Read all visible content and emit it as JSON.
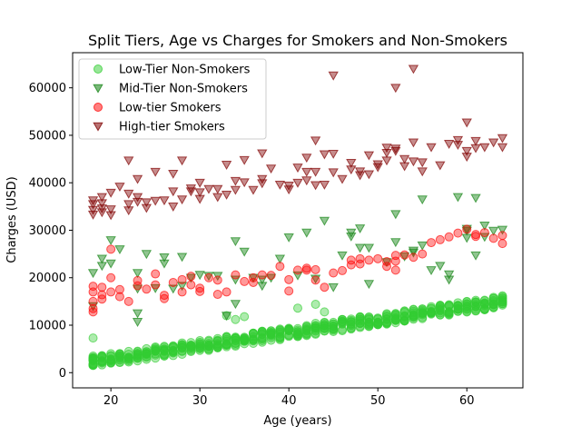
{
  "chart_data": {
    "type": "scatter",
    "title": "Split Tiers, Age vs Charges for Smokers and Non-Smokers",
    "xlabel": "Age (years)",
    "ylabel": "Charges (USD)",
    "xlim": [
      15.7,
      66.3
    ],
    "ylim": [
      -3200,
      67400
    ],
    "xticks": [
      20,
      30,
      40,
      50,
      60
    ],
    "yticks": [
      0,
      10000,
      20000,
      30000,
      40000,
      50000,
      60000
    ],
    "grid": false,
    "legend_position": "upper-left",
    "series": [
      {
        "name": "Low-Tier Non-Smokers",
        "marker": "circle",
        "color": "#32cd32",
        "alpha": 0.4,
        "trend": {
          "x0": 18,
          "x1": 64,
          "y0": 1800,
          "y1": 14500,
          "spread_low": 700,
          "spread_high": 1700
        },
        "points": [
          [
            18,
            7300
          ],
          [
            34,
            11200
          ],
          [
            35,
            11800
          ],
          [
            41,
            13600
          ],
          [
            43,
            14400
          ],
          [
            44,
            12800
          ],
          [
            33,
            12000
          ],
          [
            63,
            15200
          ],
          [
            64,
            16200
          ]
        ]
      },
      {
        "name": "Mid-Tier Non-Smokers",
        "marker": "triangle-down",
        "color": "#228b22",
        "alpha": 0.5,
        "points": [
          [
            18,
            21000
          ],
          [
            18,
            14000
          ],
          [
            19,
            22500
          ],
          [
            19,
            24000
          ],
          [
            20,
            27900
          ],
          [
            20,
            23000
          ],
          [
            21,
            26000
          ],
          [
            23,
            21000
          ],
          [
            23,
            17700
          ],
          [
            23,
            12500
          ],
          [
            23,
            10700
          ],
          [
            24,
            25000
          ],
          [
            25,
            17800
          ],
          [
            26,
            24300
          ],
          [
            26,
            23000
          ],
          [
            27,
            17700
          ],
          [
            28,
            24400
          ],
          [
            28,
            18300
          ],
          [
            29,
            20000
          ],
          [
            30,
            20600
          ],
          [
            31,
            20400
          ],
          [
            32,
            20400
          ],
          [
            33,
            12000
          ],
          [
            34,
            27700
          ],
          [
            34,
            14500
          ],
          [
            34,
            19600
          ],
          [
            35,
            25500
          ],
          [
            36,
            20000
          ],
          [
            37,
            18300
          ],
          [
            37,
            19600
          ],
          [
            38,
            20000
          ],
          [
            39,
            24000
          ],
          [
            40,
            28500
          ],
          [
            41,
            20500
          ],
          [
            42,
            29500
          ],
          [
            43,
            19800
          ],
          [
            44,
            32000
          ],
          [
            45,
            18000
          ],
          [
            46,
            24700
          ],
          [
            47,
            29500
          ],
          [
            47,
            28700
          ],
          [
            48,
            26300
          ],
          [
            48,
            30400
          ],
          [
            49,
            26300
          ],
          [
            49,
            18700
          ],
          [
            51,
            23300
          ],
          [
            52,
            27500
          ],
          [
            52,
            33400
          ],
          [
            53,
            24500
          ],
          [
            54,
            25700
          ],
          [
            54,
            25300
          ],
          [
            55,
            36500
          ],
          [
            55,
            26800
          ],
          [
            56,
            21600
          ],
          [
            57,
            22500
          ],
          [
            58,
            20700
          ],
          [
            58,
            19600
          ],
          [
            59,
            37000
          ],
          [
            60,
            29900
          ],
          [
            60,
            28400
          ],
          [
            60,
            30300
          ],
          [
            61,
            36800
          ],
          [
            61,
            24700
          ],
          [
            62,
            31000
          ],
          [
            62,
            28600
          ],
          [
            63,
            29900
          ],
          [
            64,
            30100
          ]
        ]
      },
      {
        "name": "Low-tier Smokers",
        "marker": "circle",
        "color": "#ff0000",
        "alpha": 0.4,
        "points": [
          [
            18,
            18200
          ],
          [
            18,
            17000
          ],
          [
            18,
            15000
          ],
          [
            18,
            13500
          ],
          [
            18,
            12800
          ],
          [
            19,
            16400
          ],
          [
            19,
            15500
          ],
          [
            19,
            18000
          ],
          [
            20,
            20000
          ],
          [
            20,
            17000
          ],
          [
            20,
            26000
          ],
          [
            21,
            16000
          ],
          [
            21,
            17500
          ],
          [
            22,
            15000
          ],
          [
            23,
            18300
          ],
          [
            23,
            19400
          ],
          [
            24,
            17600
          ],
          [
            25,
            20800
          ],
          [
            25,
            18500
          ],
          [
            26,
            16300
          ],
          [
            26,
            15600
          ],
          [
            27,
            19000
          ],
          [
            28,
            17000
          ],
          [
            28,
            19600
          ],
          [
            29,
            18500
          ],
          [
            29,
            20300
          ],
          [
            30,
            17100
          ],
          [
            30,
            17800
          ],
          [
            31,
            20000
          ],
          [
            32,
            19500
          ],
          [
            32,
            16500
          ],
          [
            33,
            17000
          ],
          [
            34,
            20600
          ],
          [
            35,
            19200
          ],
          [
            36,
            20000
          ],
          [
            36,
            19000
          ],
          [
            37,
            20600
          ],
          [
            38,
            20500
          ],
          [
            39,
            22400
          ],
          [
            40,
            19600
          ],
          [
            40,
            17200
          ],
          [
            41,
            21600
          ],
          [
            42,
            22000
          ],
          [
            42,
            21600
          ],
          [
            43,
            21700
          ],
          [
            43,
            19500
          ],
          [
            44,
            18000
          ],
          [
            45,
            21000
          ],
          [
            46,
            21500
          ],
          [
            47,
            23700
          ],
          [
            47,
            22700
          ],
          [
            48,
            24000
          ],
          [
            48,
            22900
          ],
          [
            49,
            23700
          ],
          [
            50,
            24000
          ],
          [
            51,
            23400
          ],
          [
            51,
            22400
          ],
          [
            52,
            24700
          ],
          [
            52,
            23500
          ],
          [
            52,
            21600
          ],
          [
            53,
            24800
          ],
          [
            54,
            24300
          ],
          [
            55,
            25000
          ],
          [
            56,
            27400
          ],
          [
            57,
            28000
          ],
          [
            58,
            28600
          ],
          [
            59,
            29400
          ],
          [
            60,
            30200
          ],
          [
            61,
            28700
          ],
          [
            61,
            29100
          ],
          [
            62,
            29500
          ],
          [
            63,
            28300
          ],
          [
            64,
            28900
          ],
          [
            64,
            27200
          ]
        ]
      },
      {
        "name": "High-tier Smokers",
        "marker": "triangle-down",
        "color": "#800000",
        "alpha": 0.45,
        "points": [
          [
            18,
            36300
          ],
          [
            18,
            35500
          ],
          [
            18,
            34300
          ],
          [
            18,
            33300
          ],
          [
            19,
            37000
          ],
          [
            19,
            34600
          ],
          [
            19,
            33800
          ],
          [
            19,
            35700
          ],
          [
            20,
            37900
          ],
          [
            20,
            34400
          ],
          [
            20,
            33200
          ],
          [
            21,
            39200
          ],
          [
            22,
            44700
          ],
          [
            22,
            37700
          ],
          [
            22,
            35500
          ],
          [
            22,
            34200
          ],
          [
            23,
            40800
          ],
          [
            23,
            37000
          ],
          [
            23,
            36000
          ],
          [
            24,
            35900
          ],
          [
            24,
            34700
          ],
          [
            25,
            42300
          ],
          [
            25,
            36200
          ],
          [
            26,
            36300
          ],
          [
            27,
            41900
          ],
          [
            27,
            38200
          ],
          [
            27,
            35000
          ],
          [
            28,
            44700
          ],
          [
            28,
            36500
          ],
          [
            29,
            38200
          ],
          [
            29,
            38800
          ],
          [
            30,
            40000
          ],
          [
            30,
            38000
          ],
          [
            30,
            36600
          ],
          [
            31,
            38700
          ],
          [
            32,
            37000
          ],
          [
            32,
            38700
          ],
          [
            33,
            43800
          ],
          [
            33,
            37500
          ],
          [
            34,
            40400
          ],
          [
            34,
            38500
          ],
          [
            35,
            44800
          ],
          [
            35,
            40100
          ],
          [
            36,
            38500
          ],
          [
            37,
            40800
          ],
          [
            37,
            39900
          ],
          [
            37,
            46200
          ],
          [
            38,
            43000
          ],
          [
            39,
            39600
          ],
          [
            40,
            39400
          ],
          [
            40,
            38600
          ],
          [
            41,
            40000
          ],
          [
            41,
            43200
          ],
          [
            42,
            45300
          ],
          [
            42,
            42300
          ],
          [
            42,
            40500
          ],
          [
            43,
            48900
          ],
          [
            43,
            42300
          ],
          [
            43,
            39500
          ],
          [
            44,
            46000
          ],
          [
            44,
            39600
          ],
          [
            45,
            62600
          ],
          [
            45,
            46100
          ],
          [
            45,
            42200
          ],
          [
            46,
            40800
          ],
          [
            47,
            42800
          ],
          [
            47,
            44200
          ],
          [
            48,
            42400
          ],
          [
            48,
            41600
          ],
          [
            49,
            45800
          ],
          [
            49,
            41800
          ],
          [
            50,
            43900
          ],
          [
            50,
            43300
          ],
          [
            51,
            47400
          ],
          [
            51,
            46300
          ],
          [
            51,
            44700
          ],
          [
            52,
            46700
          ],
          [
            52,
            60000
          ],
          [
            52,
            47200
          ],
          [
            53,
            45000
          ],
          [
            53,
            43500
          ],
          [
            54,
            64000
          ],
          [
            54,
            44500
          ],
          [
            54,
            48500
          ],
          [
            55,
            44300
          ],
          [
            55,
            42400
          ],
          [
            56,
            47500
          ],
          [
            57,
            43700
          ],
          [
            58,
            48200
          ],
          [
            59,
            49000
          ],
          [
            59,
            48000
          ],
          [
            60,
            52700
          ],
          [
            60,
            46700
          ],
          [
            60,
            45500
          ],
          [
            61,
            48800
          ],
          [
            61,
            47300
          ],
          [
            62,
            47500
          ],
          [
            63,
            48500
          ],
          [
            64,
            49400
          ],
          [
            64,
            47500
          ]
        ]
      }
    ]
  }
}
